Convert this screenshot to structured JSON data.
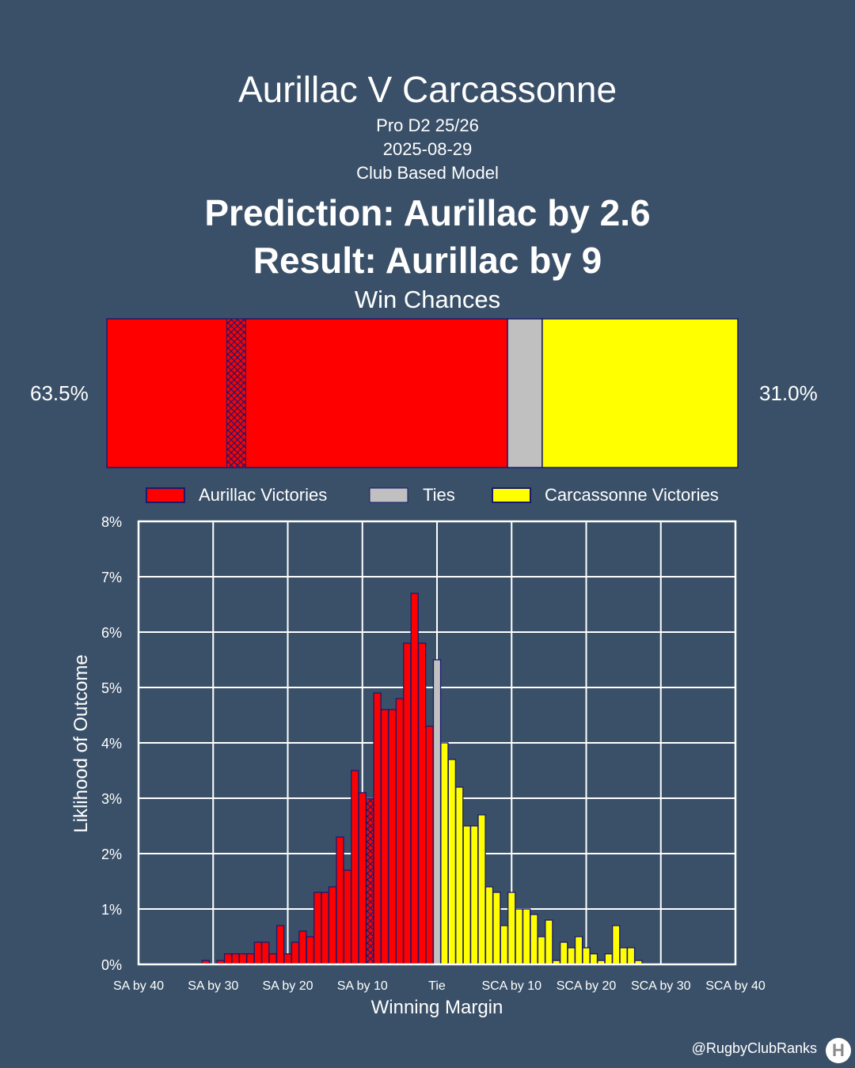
{
  "header": {
    "title": "Aurillac V Carcassonne",
    "competition": "Pro D2 25/26",
    "date": "2025-08-29",
    "model": "Club Based Model",
    "prediction": "Prediction: Aurillac by 2.6",
    "result": "Result: Aurillac by 9"
  },
  "win_chances": {
    "title": "Win Chances",
    "home_pct_label": "63.5%",
    "away_pct_label": "31.0%",
    "home": 63.5,
    "tie": 5.5,
    "away": 31.0,
    "hatch_range": [
      19,
      22
    ]
  },
  "legend": {
    "home": "Aurillac Victories",
    "tie": "Ties",
    "away": "Carcassonne Victories"
  },
  "colors": {
    "home": "#ff0000",
    "tie": "#c0c0c0",
    "away": "#ffff00",
    "edge": "#1a1a6e",
    "background": "#3a5068"
  },
  "chart_data": {
    "type": "bar",
    "xlabel": "Winning Margin",
    "ylabel": "Liklihood of Outcome",
    "xlim": [
      -40,
      40
    ],
    "ylim": [
      0,
      8
    ],
    "x_ticks": [
      -40,
      -30,
      -20,
      -10,
      0,
      10,
      20,
      30,
      40
    ],
    "x_tick_labels": [
      "SA by 40",
      "SA by 30",
      "SA by 20",
      "SA by 10",
      "Tie",
      "SCA by 10",
      "SCA by 20",
      "SCA by 30",
      "SCA by 40"
    ],
    "y_ticks": [
      0,
      1,
      2,
      3,
      4,
      5,
      6,
      7,
      8
    ],
    "y_tick_labels": [
      "0%",
      "1%",
      "2%",
      "3%",
      "4%",
      "5%",
      "6%",
      "7%",
      "8%"
    ],
    "grid": true,
    "actual_result_margin": -9,
    "series": [
      {
        "name": "Aurillac Victories",
        "x": [
          -31,
          -30,
          -29,
          -28,
          -27,
          -26,
          -25,
          -24,
          -23,
          -22,
          -21,
          -20,
          -19,
          -18,
          -17,
          -16,
          -15,
          -14,
          -13,
          -12,
          -11,
          -10,
          -9,
          -8,
          -7,
          -6,
          -5,
          -4,
          -3,
          -2,
          -1
        ],
        "values": [
          0.07,
          0.0,
          0.07,
          0.19,
          0.19,
          0.19,
          0.19,
          0.4,
          0.4,
          0.19,
          0.7,
          0.19,
          0.4,
          0.6,
          0.5,
          1.3,
          1.3,
          1.4,
          2.3,
          1.7,
          3.5,
          3.1,
          3.0,
          4.9,
          4.6,
          4.6,
          4.8,
          5.8,
          6.7,
          5.8,
          4.3
        ]
      },
      {
        "name": "Ties",
        "x": [
          0
        ],
        "values": [
          5.5
        ]
      },
      {
        "name": "Carcassonne Victories",
        "x": [
          1,
          2,
          3,
          4,
          5,
          6,
          7,
          8,
          9,
          10,
          11,
          12,
          13,
          14,
          15,
          16,
          17,
          18,
          19,
          20,
          21,
          22,
          23,
          24,
          25,
          26,
          27
        ],
        "values": [
          4.0,
          3.7,
          3.2,
          2.5,
          2.5,
          2.7,
          1.4,
          1.3,
          0.7,
          1.3,
          1.0,
          1.0,
          0.9,
          0.5,
          0.8,
          0.07,
          0.4,
          0.3,
          0.5,
          0.3,
          0.19,
          0.07,
          0.19,
          0.7,
          0.3,
          0.3,
          0.07
        ]
      }
    ]
  },
  "credit": "@RugbyClubRanks"
}
